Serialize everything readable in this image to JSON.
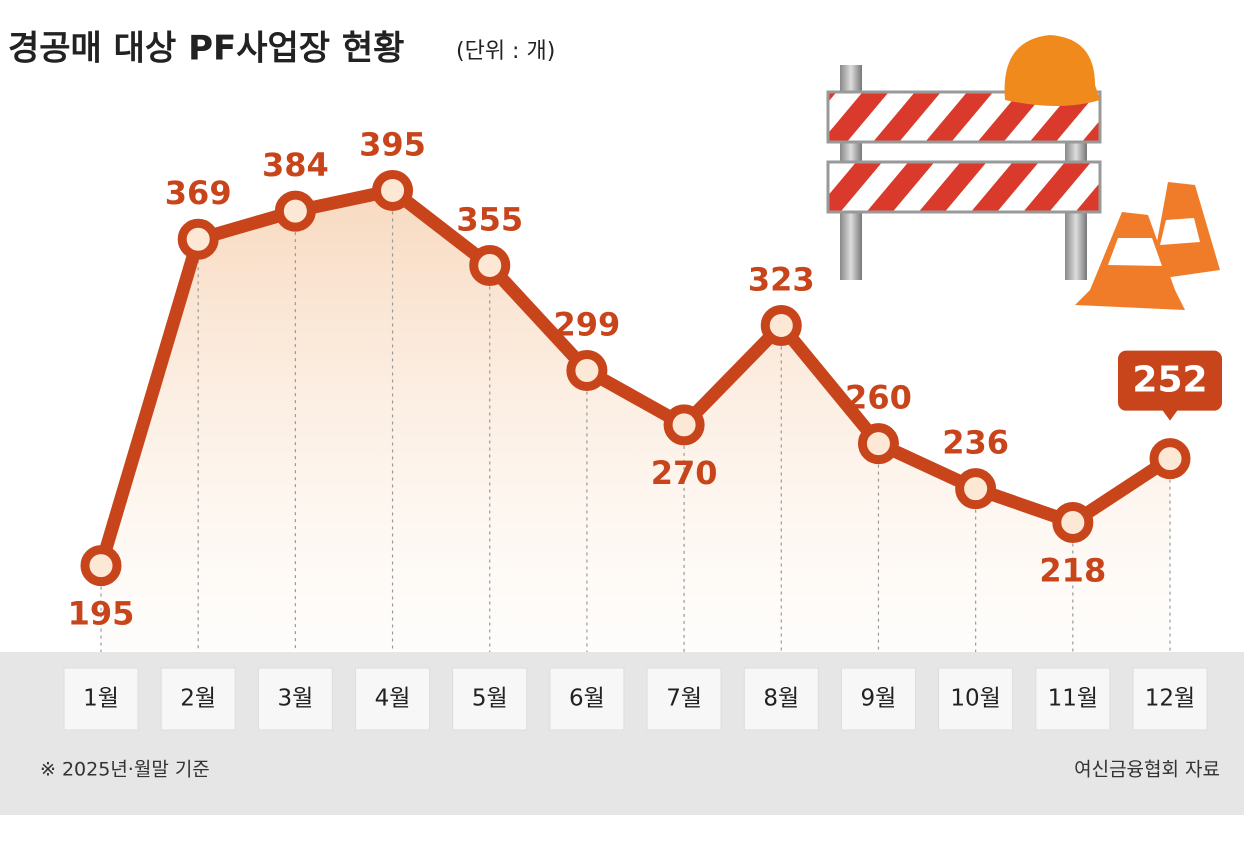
{
  "chart_data": {
    "type": "line",
    "title": "경공매 대상 PF사업장 현황",
    "subtitle": "(단위 : 개)",
    "categories": [
      "1월",
      "2월",
      "3월",
      "4월",
      "5월",
      "6월",
      "7월",
      "8월",
      "9월",
      "10월",
      "11월",
      "12월"
    ],
    "values": [
      195,
      369,
      384,
      395,
      355,
      299,
      270,
      323,
      260,
      236,
      218,
      252
    ],
    "color": "#c8451c",
    "ylim": [
      150,
      480
    ],
    "footnote": "※ 2025년·월말 기준",
    "source": "여신금융협회 자료"
  }
}
